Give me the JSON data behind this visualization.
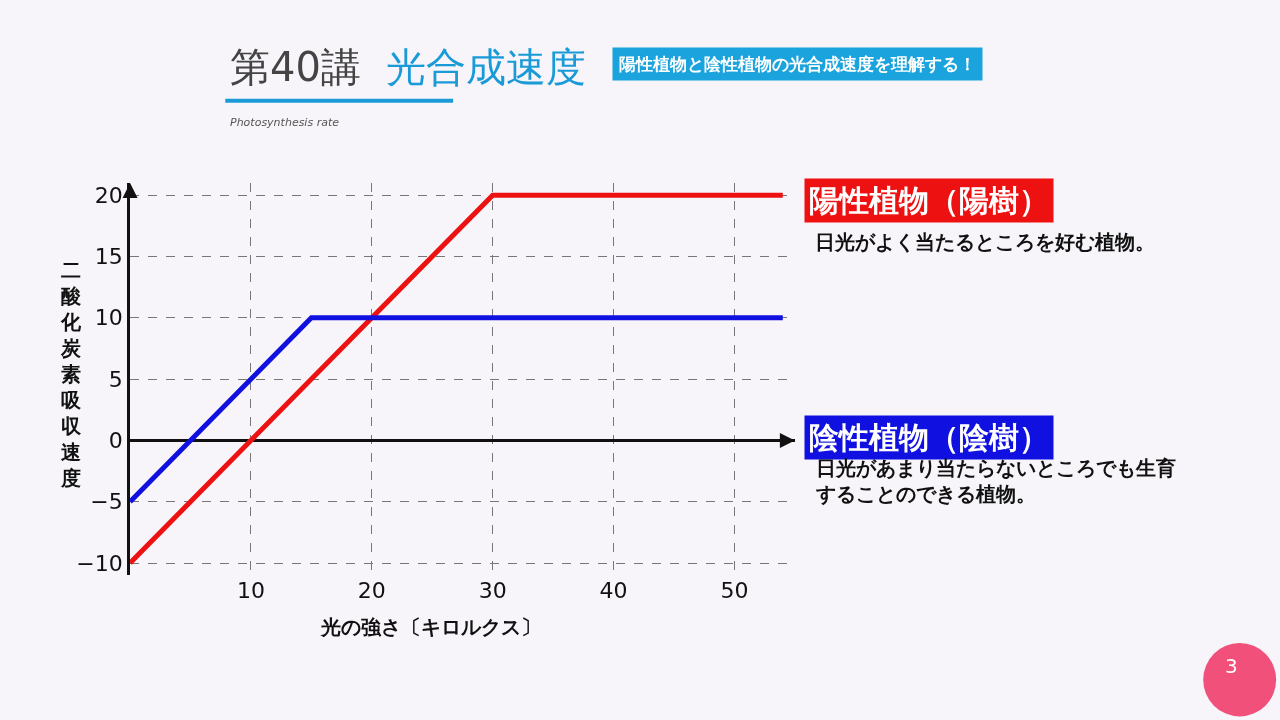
{
  "chart_data": {
    "type": "line",
    "title": "第40講 光合成速度",
    "subtitle": "Photosynthesis rate",
    "xlabel": "光の強さ〔キロルクス〕",
    "ylabel": "二酸化炭素吸収速度",
    "series": [
      {
        "name": "陽性植物（陽樹）",
        "color": "#ee1111",
        "x": [
          0,
          30,
          54
        ],
        "values": [
          -10,
          20,
          20
        ]
      },
      {
        "name": "陰性植物（陰樹）",
        "color": "#1010e0",
        "x": [
          0,
          15,
          54
        ],
        "values": [
          -5,
          10,
          10
        ]
      }
    ],
    "xlim": [
      0,
      55
    ],
    "ylim": [
      -11,
      21
    ],
    "xticks": [
      10,
      20,
      30,
      40,
      50
    ],
    "yticks": [
      -10,
      -5,
      0,
      5,
      10,
      15,
      20
    ],
    "grid": true,
    "legend": false,
    "marker": "none",
    "line_style": "solid",
    "annotations": [
      "陽性植物と陰性植物の光合成速度を理解する！",
      "日光がよく当たるところを好む植物。",
      "日光があまり当たらないところでも生育することのできる植物。",
      "3"
    ]
  }
}
